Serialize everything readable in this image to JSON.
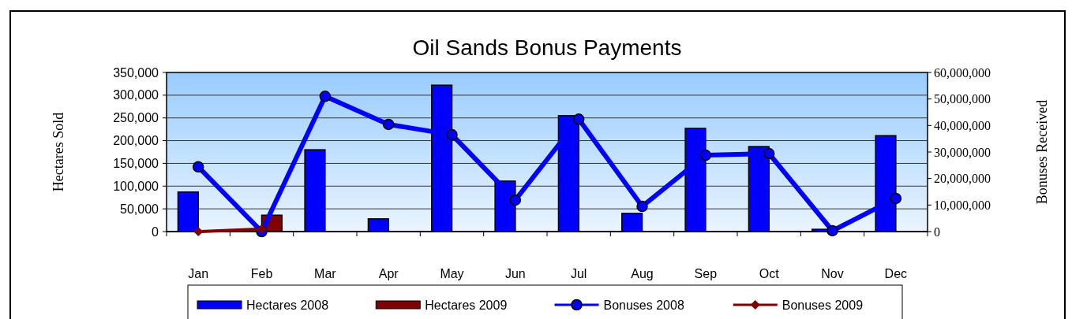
{
  "chart_data": {
    "type": "bar",
    "title": "Oil Sands Bonus Payments",
    "ylabel": "Hectares Sold",
    "y2label": "Bonuses Received",
    "categories": [
      "Jan",
      "Feb",
      "Mar",
      "Apr",
      "May",
      "Jun",
      "Jul",
      "Aug",
      "Sep",
      "Oct",
      "Nov",
      "Dec"
    ],
    "series": [
      {
        "name": "Hectares 2008",
        "color": "#0000ff",
        "values": [
          87000,
          null,
          180000,
          28000,
          322000,
          111000,
          255000,
          40000,
          227000,
          187000,
          5000,
          211000
        ]
      },
      {
        "name": "Hectares 2009",
        "color": "#800000",
        "values": [
          null,
          36000,
          null,
          null,
          null,
          null,
          null,
          null,
          null,
          null,
          null,
          null
        ]
      },
      {
        "name": "Bonuses 2008",
        "type": "line",
        "axis": "y2",
        "marker": "circle",
        "color": "#0000ff",
        "values": [
          24400000,
          0,
          51000000,
          40400000,
          36500000,
          11900000,
          42400000,
          9500000,
          28800000,
          29400000,
          300000,
          12500000
        ]
      },
      {
        "name": "Bonuses 2009",
        "type": "line",
        "axis": "y2",
        "marker": "diamond",
        "color": "#800000",
        "values": [
          0,
          1000000,
          null,
          null,
          null,
          null,
          null,
          null,
          null,
          null,
          null,
          null
        ]
      }
    ],
    "ylim": [
      0,
      350000
    ],
    "yticks": [
      {
        "value": 0,
        "label": "0"
      },
      {
        "value": 50000,
        "label": "50,000"
      },
      {
        "value": 100000,
        "label": "100,000"
      },
      {
        "value": 150000,
        "label": "150,000"
      },
      {
        "value": 200000,
        "label": "200,000"
      },
      {
        "value": 250000,
        "label": "250,000"
      },
      {
        "value": 300000,
        "label": "300,000"
      },
      {
        "value": 350000,
        "label": "350,000"
      }
    ],
    "y2lim": [
      0,
      60000000
    ],
    "y2ticks": [
      {
        "value": 0,
        "label": "0"
      },
      {
        "value": 10000000,
        "label": "10,000,000"
      },
      {
        "value": 20000000,
        "label": "20,000,000"
      },
      {
        "value": 30000000,
        "label": "30,000,000"
      },
      {
        "value": 40000000,
        "label": "40,000,000"
      },
      {
        "value": 50000000,
        "label": "50,000,000"
      },
      {
        "value": 60000000,
        "label": "60,000,000"
      }
    ],
    "grid": "y",
    "legend": "bottom"
  }
}
